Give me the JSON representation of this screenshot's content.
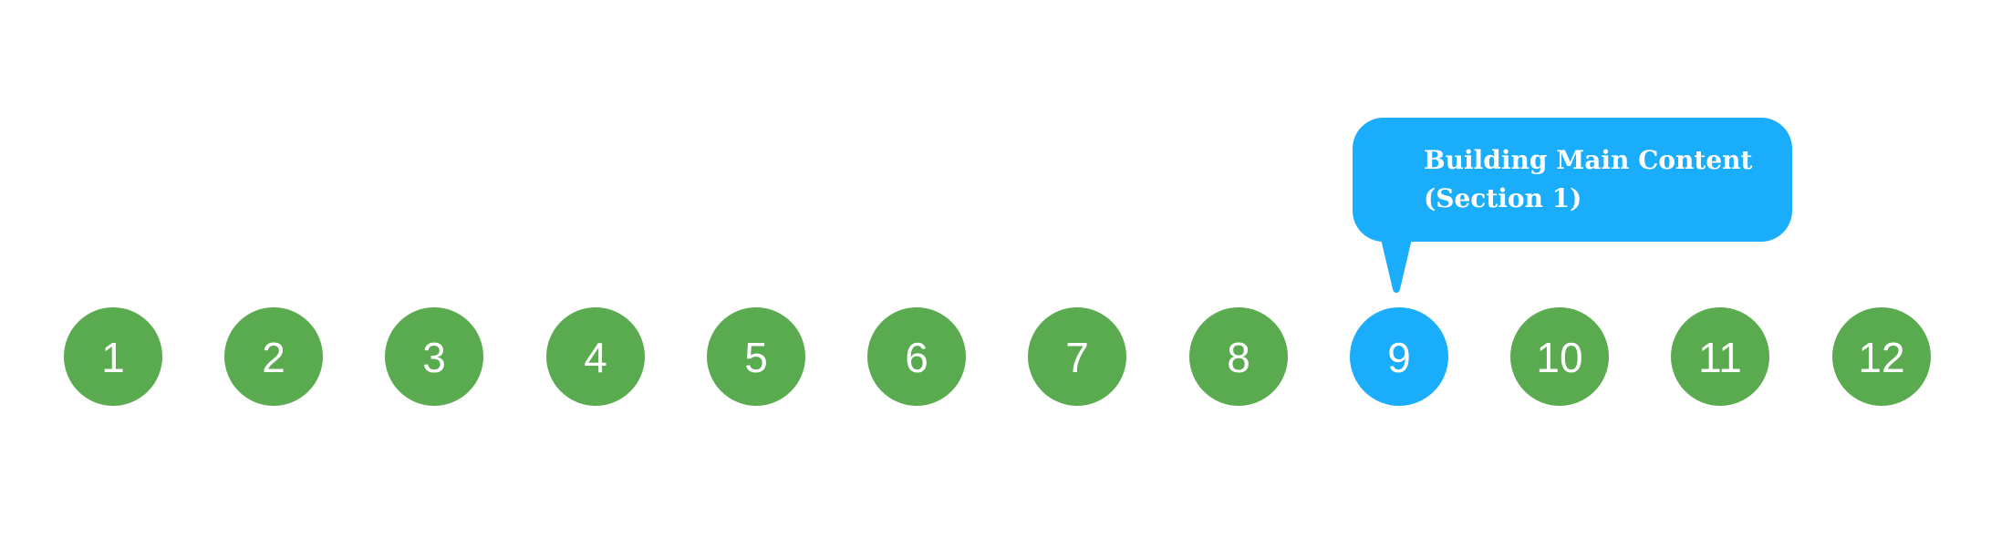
{
  "steps": [
    {
      "label": "1"
    },
    {
      "label": "2"
    },
    {
      "label": "3"
    },
    {
      "label": "4"
    },
    {
      "label": "5"
    },
    {
      "label": "6"
    },
    {
      "label": "7"
    },
    {
      "label": "8"
    },
    {
      "label": "9"
    },
    {
      "label": "10"
    },
    {
      "label": "11"
    },
    {
      "label": "12"
    }
  ],
  "active_step": "9",
  "tooltip": {
    "text": "Building Main Content (Section 1)"
  },
  "colors": {
    "completed": "#5aab4f",
    "active": "#1aadfc",
    "text": "#ffffff",
    "background": "#ffffff"
  }
}
